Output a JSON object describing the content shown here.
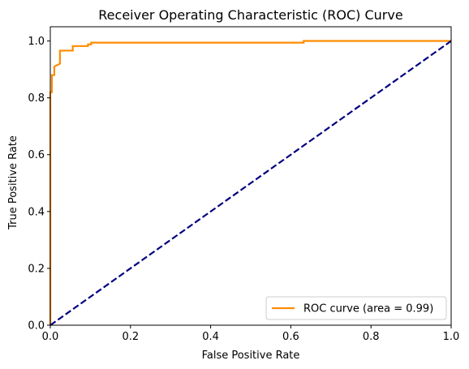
{
  "chart_data": {
    "type": "line",
    "title": "Receiver Operating Characteristic (ROC) Curve",
    "xlabel": "False Positive Rate",
    "ylabel": "True Positive Rate",
    "xlim": [
      0.0,
      1.0
    ],
    "ylim": [
      0.0,
      1.05
    ],
    "x_ticks": [
      "0.0",
      "0.2",
      "0.4",
      "0.6",
      "0.8",
      "1.0"
    ],
    "y_ticks": [
      "0.0",
      "0.2",
      "0.4",
      "0.6",
      "0.8",
      "1.0"
    ],
    "grid": false,
    "legend_position": "lower-right",
    "series": [
      {
        "name": "ROC curve (area = 0.99)",
        "color": "#ff8c00",
        "line_style": "solid",
        "x": [
          0.0,
          0.0,
          0.004,
          0.004,
          0.01,
          0.01,
          0.024,
          0.024,
          0.056,
          0.056,
          0.094,
          0.094,
          0.102,
          0.102,
          0.632,
          0.632,
          1.0
        ],
        "y": [
          0.0,
          0.82,
          0.82,
          0.88,
          0.88,
          0.91,
          0.92,
          0.966,
          0.966,
          0.982,
          0.982,
          0.988,
          0.988,
          0.994,
          0.994,
          1.0,
          1.0
        ]
      },
      {
        "name": "",
        "color": "#000080",
        "line_style": "dashed",
        "x": [
          0.0,
          1.0
        ],
        "y": [
          0.0,
          1.0
        ]
      }
    ]
  }
}
